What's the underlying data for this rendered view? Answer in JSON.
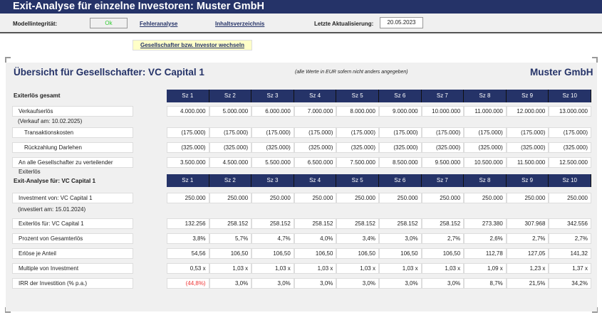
{
  "title": "Exit-Analyse für einzelne Investoren: Muster GmbH",
  "toolbar": {
    "integrity_label": "Modellintegrität:",
    "integrity_status": "Ok",
    "error_link": "Fehleranalyse",
    "toc_link": "Inhaltsverzeichnis",
    "updated_label": "Letzte Aktualisierung:",
    "updated_value": "20.05.2023",
    "switch_button": "Gesellschafter bzw. Investor wechseln"
  },
  "colors": {
    "header": "#253368",
    "status_ok": "#33cc33",
    "negative": "#ee3333",
    "button": "#ffffc8"
  },
  "panel": {
    "title": "Übersicht für Gesellschafter: VC Capital 1",
    "note": "(alle Werte in EUR sofern nicht anders angegeben)",
    "company": "Muster GmbH"
  },
  "scenarios": [
    "Sz 1",
    "Sz 2",
    "Sz 3",
    "Sz 4",
    "Sz 5",
    "Sz 6",
    "Sz 7",
    "Sz 8",
    "Sz 9",
    "Sz 10"
  ],
  "section1": {
    "title": "Exiterlös gesamt",
    "sale_date": "(Verkauf am: 10.02.2025)",
    "rows": [
      {
        "label": "Verkaufserlös",
        "indent": false,
        "values": [
          "4.000.000",
          "5.000.000",
          "6.000.000",
          "7.000.000",
          "8.000.000",
          "9.000.000",
          "10.000.000",
          "11.000.000",
          "12.000.000",
          "13.000.000"
        ]
      },
      {
        "label": "Transaktionskosten",
        "indent": true,
        "values": [
          "(175.000)",
          "(175.000)",
          "(175.000)",
          "(175.000)",
          "(175.000)",
          "(175.000)",
          "(175.000)",
          "(175.000)",
          "(175.000)",
          "(175.000)"
        ]
      },
      {
        "label": "Rückzahlung Darlehen",
        "indent": true,
        "values": [
          "(325.000)",
          "(325.000)",
          "(325.000)",
          "(325.000)",
          "(325.000)",
          "(325.000)",
          "(325.000)",
          "(325.000)",
          "(325.000)",
          "(325.000)"
        ]
      },
      {
        "label": "An alle Gesellschafter zu verteilender Exiterlös",
        "indent": false,
        "values": [
          "3.500.000",
          "4.500.000",
          "5.500.000",
          "6.500.000",
          "7.500.000",
          "8.500.000",
          "9.500.000",
          "10.500.000",
          "11.500.000",
          "12.500.000"
        ]
      }
    ]
  },
  "section2": {
    "title": "Exit-Analyse für: VC Capital 1",
    "invest_date": "(investiert am: 15.01.2024)",
    "rows": [
      {
        "label": "Investment von: VC Capital 1",
        "values": [
          "250.000",
          "250.000",
          "250.000",
          "250.000",
          "250.000",
          "250.000",
          "250.000",
          "250.000",
          "250.000",
          "250.000"
        ]
      },
      {
        "label": "Exiterlös für: VC Capital 1",
        "values": [
          "132.256",
          "258.152",
          "258.152",
          "258.152",
          "258.152",
          "258.152",
          "258.152",
          "273.380",
          "307.968",
          "342.556"
        ]
      },
      {
        "label": "Prozent von Gesamterlös",
        "values": [
          "3,8%",
          "5,7%",
          "4,7%",
          "4,0%",
          "3,4%",
          "3,0%",
          "2,7%",
          "2,6%",
          "2,7%",
          "2,7%"
        ]
      },
      {
        "label": "Erlöse je Anteil",
        "values": [
          "54,56",
          "106,50",
          "106,50",
          "106,50",
          "106,50",
          "106,50",
          "106,50",
          "112,78",
          "127,05",
          "141,32"
        ]
      },
      {
        "label": "Multiple von Investment",
        "values": [
          "0,53 x",
          "1,03 x",
          "1,03 x",
          "1,03 x",
          "1,03 x",
          "1,03 x",
          "1,03 x",
          "1,09 x",
          "1,23 x",
          "1,37 x"
        ]
      },
      {
        "label": "IRR der Investition  (% p.a.)",
        "values": [
          "(44,8%)",
          "3,0%",
          "3,0%",
          "3,0%",
          "3,0%",
          "3,0%",
          "3,0%",
          "8,7%",
          "21,5%",
          "34,2%"
        ]
      }
    ]
  }
}
